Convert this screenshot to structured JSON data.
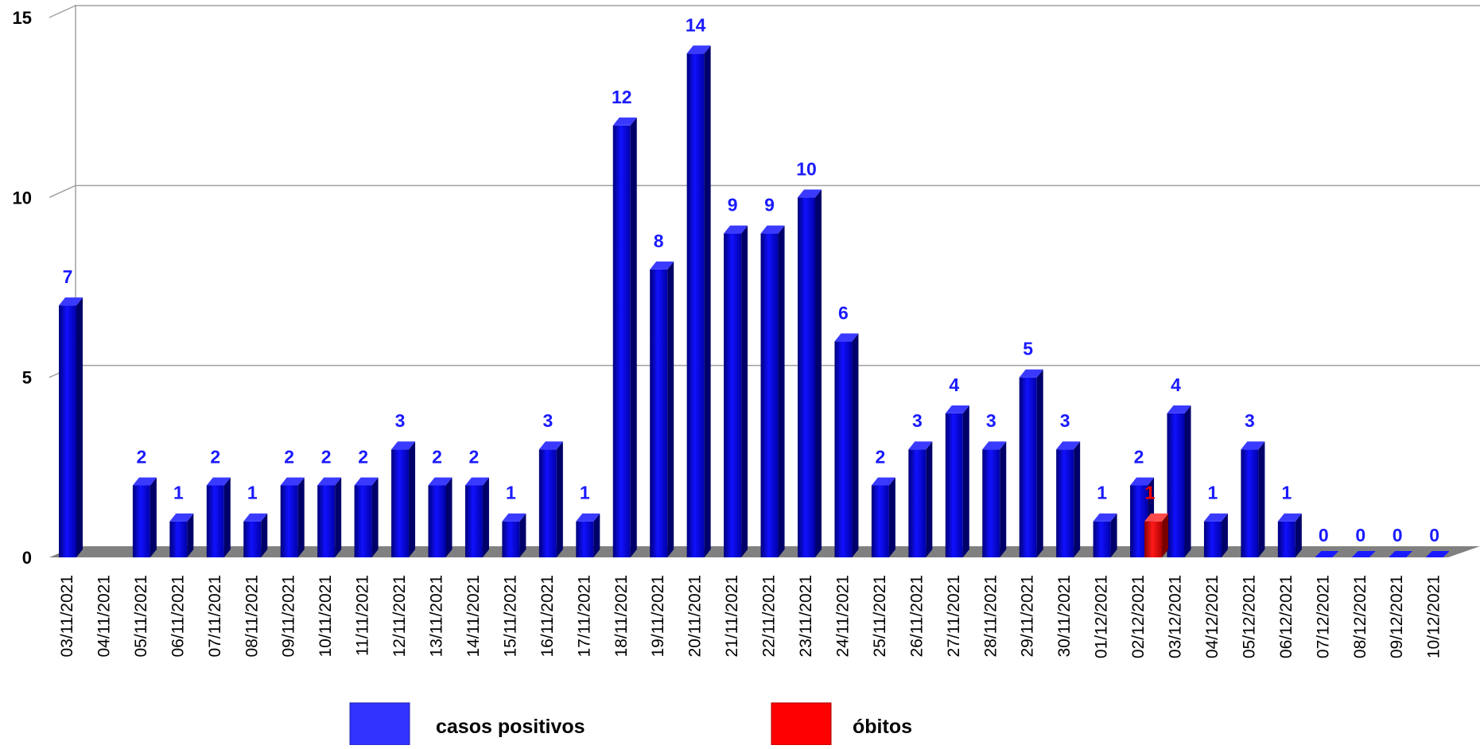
{
  "chart_data": {
    "type": "bar",
    "title": "",
    "xlabel": "",
    "ylabel": "",
    "ylim": [
      0,
      15
    ],
    "yticks": [
      0,
      5,
      10,
      15
    ],
    "grid": true,
    "legend_position": "bottom",
    "categories": [
      "03/11/2021",
      "04/11/2021",
      "05/11/2021",
      "06/11/2021",
      "07/11/2021",
      "08/11/2021",
      "09/11/2021",
      "10/11/2021",
      "11/11/2021",
      "12/11/2021",
      "13/11/2021",
      "14/11/2021",
      "15/11/2021",
      "16/11/2021",
      "17/11/2021",
      "18/11/2021",
      "19/11/2021",
      "20/11/2021",
      "21/11/2021",
      "22/11/2021",
      "23/11/2021",
      "24/11/2021",
      "25/11/2021",
      "26/11/2021",
      "27/11/2021",
      "28/11/2021",
      "29/11/2021",
      "30/11/2021",
      "01/12/2021",
      "02/12/2021",
      "03/12/2021",
      "04/12/2021",
      "05/12/2021",
      "06/12/2021",
      "07/12/2021",
      "08/12/2021",
      "09/12/2021",
      "10/12/2021"
    ],
    "series": [
      {
        "name": "casos positivos",
        "color": "#1a1aff",
        "values": [
          7,
          null,
          2,
          1,
          2,
          1,
          2,
          2,
          2,
          3,
          2,
          2,
          1,
          3,
          1,
          12,
          8,
          14,
          9,
          9,
          10,
          6,
          2,
          3,
          4,
          3,
          5,
          3,
          1,
          2,
          4,
          1,
          3,
          1,
          0,
          0,
          0,
          0
        ]
      },
      {
        "name": "óbitos",
        "color": "#ff0000",
        "values": [
          null,
          null,
          null,
          null,
          null,
          null,
          null,
          null,
          null,
          null,
          null,
          null,
          null,
          null,
          null,
          null,
          null,
          null,
          null,
          null,
          null,
          null,
          null,
          null,
          null,
          null,
          null,
          null,
          null,
          1,
          null,
          null,
          null,
          null,
          null,
          null,
          null,
          null
        ]
      }
    ]
  },
  "legend": {
    "items": [
      {
        "label": "casos positivos",
        "color": "#3333ff"
      },
      {
        "label": "óbitos",
        "color": "#ff0000"
      }
    ]
  }
}
